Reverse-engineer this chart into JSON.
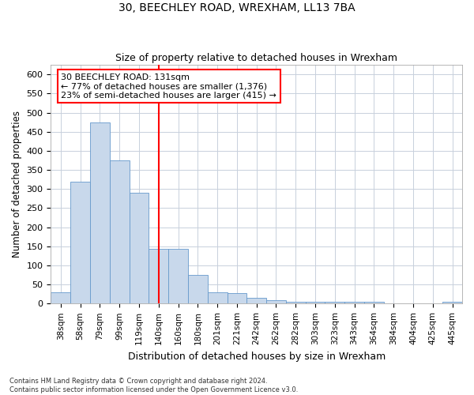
{
  "title1": "30, BEECHLEY ROAD, WREXHAM, LL13 7BA",
  "title2": "Size of property relative to detached houses in Wrexham",
  "xlabel": "Distribution of detached houses by size in Wrexham",
  "ylabel": "Number of detached properties",
  "footnote": "Contains HM Land Registry data © Crown copyright and database right 2024.\nContains public sector information licensed under the Open Government Licence v3.0.",
  "categories": [
    "38sqm",
    "58sqm",
    "79sqm",
    "99sqm",
    "119sqm",
    "140sqm",
    "160sqm",
    "180sqm",
    "201sqm",
    "221sqm",
    "242sqm",
    "262sqm",
    "282sqm",
    "303sqm",
    "323sqm",
    "343sqm",
    "364sqm",
    "384sqm",
    "404sqm",
    "425sqm",
    "445sqm"
  ],
  "values": [
    30,
    320,
    475,
    375,
    290,
    143,
    143,
    75,
    30,
    27,
    15,
    8,
    4,
    4,
    4,
    4,
    4,
    0,
    0,
    0,
    5
  ],
  "bar_color": "#c8d8eb",
  "bar_edge_color": "#6699cc",
  "red_line_x": 5.0,
  "ylim": [
    0,
    625
  ],
  "yticks": [
    0,
    50,
    100,
    150,
    200,
    250,
    300,
    350,
    400,
    450,
    500,
    550,
    600
  ],
  "annotation_title": "30 BEECHLEY ROAD: 131sqm",
  "annotation_line1": "← 77% of detached houses are smaller (1,376)",
  "annotation_line2": "23% of semi-detached houses are larger (415) →",
  "bg_color": "#ffffff",
  "plot_bg_color": "#ffffff",
  "grid_color": "#c8d0dc"
}
